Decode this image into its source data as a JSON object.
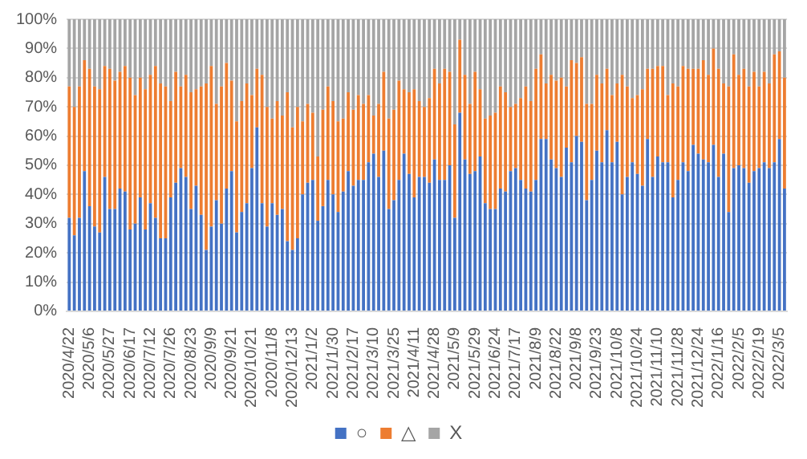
{
  "chart_data": {
    "type": "bar",
    "stacked": true,
    "categories": [
      "2020/4/22",
      null,
      null,
      null,
      "2020/5/6",
      null,
      null,
      null,
      "2020/5/27",
      null,
      null,
      null,
      "2020/6/17",
      null,
      null,
      null,
      "2020/7/12",
      null,
      null,
      null,
      "2020/7/26",
      null,
      null,
      null,
      "2020/8/23",
      null,
      null,
      null,
      "2020/9/9",
      null,
      null,
      null,
      "2020/9/21",
      null,
      null,
      null,
      "2020/10/21",
      null,
      null,
      null,
      "2020/11/8",
      null,
      null,
      null,
      "2020/12/13",
      null,
      null,
      null,
      "2021/1/2",
      null,
      null,
      null,
      "2021/1/30",
      null,
      null,
      null,
      "2021/2/17",
      null,
      null,
      null,
      "2021/3/10",
      null,
      null,
      null,
      "2021/3/25",
      null,
      null,
      null,
      "2021/4/11",
      null,
      null,
      null,
      "2021/4/28",
      null,
      null,
      null,
      "2021/5/9",
      null,
      null,
      null,
      "2021/5/29",
      null,
      null,
      null,
      "2021/6/24",
      null,
      null,
      null,
      "2021/7/17",
      null,
      null,
      null,
      "2021/8/9",
      null,
      null,
      null,
      "2021/8/22",
      null,
      null,
      null,
      "2021/9/8",
      null,
      null,
      null,
      "2021/9/23",
      null,
      null,
      null,
      "2021/10/8",
      null,
      null,
      null,
      "2021/10/24",
      null,
      null,
      null,
      "2021/11/10",
      null,
      null,
      null,
      "2021/11/28",
      null,
      null,
      null,
      "2021/12/24",
      null,
      null,
      null,
      "2022/1/16",
      null,
      null,
      null,
      "2022/2/5",
      null,
      null,
      null,
      "2022/2/19",
      null,
      null,
      null,
      "2022/3/5",
      null
    ],
    "series": [
      {
        "name": "○",
        "color": "#4472c4",
        "values": [
          32,
          26,
          32,
          48,
          36,
          29,
          27,
          46,
          35,
          35,
          42,
          41,
          28,
          30,
          39,
          28,
          37,
          32,
          25,
          25,
          39,
          44,
          49,
          46,
          35,
          43,
          33,
          21,
          29,
          38,
          30,
          42,
          48,
          27,
          34,
          37,
          49,
          63,
          37,
          29,
          37,
          33,
          35,
          24,
          21,
          25,
          40,
          44,
          45,
          31,
          36,
          45,
          40,
          34,
          41,
          48,
          43,
          45,
          45,
          51,
          54,
          46,
          55,
          35,
          38,
          45,
          54,
          47,
          39,
          46,
          46,
          44,
          52,
          45,
          45,
          50,
          32,
          68,
          52,
          47,
          48,
          53,
          37,
          35,
          35,
          42,
          41,
          48,
          49,
          45,
          42,
          41,
          45,
          59,
          59,
          52,
          49,
          46,
          56,
          51,
          60,
          58,
          38,
          45,
          55,
          51,
          62,
          51,
          58,
          40,
          46,
          51,
          47,
          43,
          59,
          46,
          53,
          51,
          51,
          39,
          45,
          51,
          48,
          57,
          54,
          52,
          51,
          57,
          46,
          54,
          34,
          49,
          50,
          49,
          44,
          48,
          49,
          51,
          49,
          51,
          59,
          42
        ]
      },
      {
        "name": "△",
        "color": "#ed7d31",
        "values": [
          45,
          44,
          45,
          38,
          47,
          48,
          49,
          38,
          48,
          44,
          40,
          43,
          52,
          44,
          41,
          48,
          44,
          52,
          53,
          52,
          33,
          38,
          28,
          35,
          40,
          33,
          44,
          57,
          55,
          33,
          47,
          43,
          31,
          38,
          38,
          41,
          25,
          20,
          44,
          41,
          29,
          39,
          32,
          51,
          42,
          45,
          25,
          27,
          23,
          22,
          33,
          32,
          32,
          31,
          25,
          27,
          26,
          29,
          26,
          23,
          13,
          25,
          27,
          31,
          31,
          34,
          22,
          28,
          37,
          26,
          24,
          29,
          31,
          33,
          38,
          32,
          32,
          25,
          29,
          24,
          34,
          23,
          29,
          32,
          33,
          35,
          34,
          22,
          22,
          28,
          35,
          31,
          38,
          29,
          19,
          29,
          30,
          34,
          21,
          35,
          25,
          29,
          33,
          26,
          26,
          27,
          21,
          23,
          20,
          41,
          31,
          22,
          27,
          33,
          24,
          37,
          31,
          33,
          23,
          39,
          32,
          33,
          35,
          26,
          29,
          34,
          30,
          33,
          37,
          24,
          43,
          39,
          31,
          34,
          33,
          34,
          28,
          31,
          29,
          37,
          30,
          38
        ]
      },
      {
        "name": "X",
        "color": "#a5a5a5",
        "values": [
          23,
          30,
          23,
          14,
          17,
          23,
          24,
          16,
          17,
          21,
          18,
          16,
          20,
          26,
          20,
          24,
          19,
          16,
          22,
          23,
          28,
          18,
          23,
          19,
          25,
          24,
          23,
          22,
          16,
          29,
          23,
          15,
          21,
          35,
          28,
          22,
          26,
          17,
          19,
          30,
          34,
          28,
          33,
          25,
          37,
          30,
          35,
          29,
          32,
          47,
          31,
          23,
          28,
          35,
          34,
          25,
          31,
          26,
          29,
          26,
          33,
          29,
          18,
          34,
          31,
          21,
          24,
          25,
          24,
          28,
          30,
          27,
          17,
          22,
          17,
          18,
          36,
          7,
          19,
          29,
          18,
          24,
          34,
          33,
          32,
          23,
          25,
          30,
          29,
          27,
          23,
          28,
          17,
          12,
          22,
          19,
          21,
          20,
          23,
          14,
          15,
          13,
          29,
          29,
          19,
          22,
          17,
          26,
          22,
          19,
          23,
          27,
          26,
          24,
          17,
          17,
          16,
          16,
          26,
          22,
          23,
          16,
          17,
          17,
          17,
          14,
          19,
          10,
          17,
          22,
          23,
          12,
          19,
          17,
          23,
          18,
          23,
          18,
          22,
          12,
          11,
          20
        ]
      }
    ],
    "ylim": [
      0,
      100
    ],
    "yticks": [
      {
        "value": 0,
        "label": "0%"
      },
      {
        "value": 10,
        "label": "10%"
      },
      {
        "value": 20,
        "label": "20%"
      },
      {
        "value": 30,
        "label": "30%"
      },
      {
        "value": 40,
        "label": "40%"
      },
      {
        "value": 50,
        "label": "50%"
      },
      {
        "value": 60,
        "label": "60%"
      },
      {
        "value": 70,
        "label": "70%"
      },
      {
        "value": 80,
        "label": "80%"
      },
      {
        "value": 90,
        "label": "90%"
      },
      {
        "value": 100,
        "label": "100%"
      }
    ],
    "grid": "y",
    "legend": "bottom"
  }
}
